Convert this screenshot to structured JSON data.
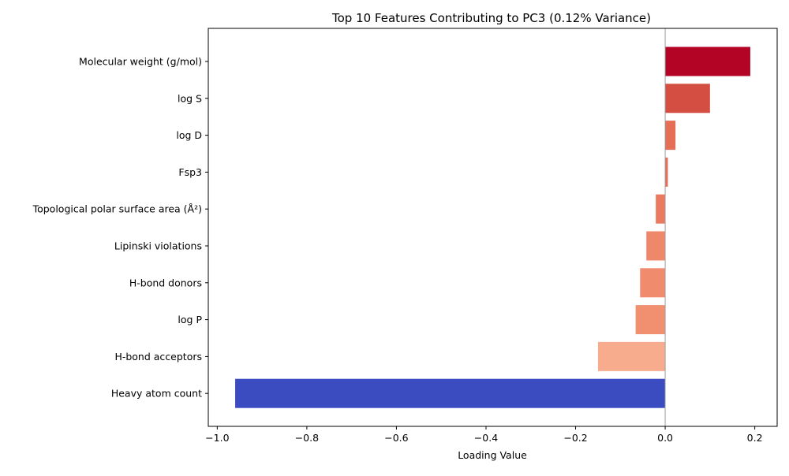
{
  "chart_data": {
    "type": "bar",
    "orientation": "horizontal",
    "title": "Top 10 Features Contributing to PC3 (0.12% Variance)",
    "xlabel": "Loading Value",
    "ylabel": "",
    "xlim": [
      -1.02,
      0.25
    ],
    "xticks": [
      -1.0,
      -0.8,
      -0.6,
      -0.4,
      -0.2,
      0.0,
      0.2
    ],
    "xtick_labels": [
      "−1.0",
      "−0.8",
      "−0.6",
      "−0.4",
      "−0.2",
      "0.0",
      "0.2"
    ],
    "zero_line": true,
    "grid": false,
    "categories": [
      "Molecular weight (g/mol)",
      "log S",
      "log D",
      "Fsp3",
      "Topological polar surface area (Å²)",
      "Lipinski violations",
      "H-bond donors",
      "log P",
      "H-bond acceptors",
      "Heavy atom count"
    ],
    "values": [
      0.19,
      0.1,
      0.023,
      0.006,
      -0.021,
      -0.042,
      -0.056,
      -0.066,
      -0.15,
      -0.96
    ],
    "colors": [
      "#b40426",
      "#d44e41",
      "#e46e56",
      "#e57058",
      "#ea7b60",
      "#ef886b",
      "#f08b6e",
      "#f18f71",
      "#f7ac8e",
      "#3b4cc0"
    ]
  }
}
